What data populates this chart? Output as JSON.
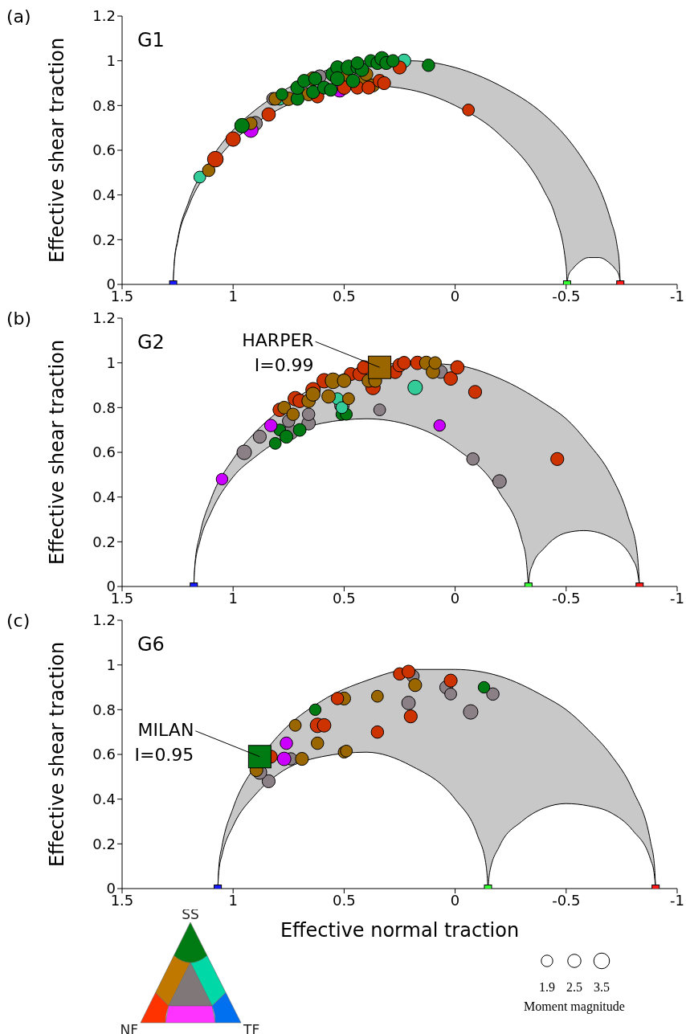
{
  "chart_data": [
    {
      "type": "bubble",
      "title": "G1",
      "ylabel": "Effective shear traction",
      "annotations": [
        "(a)"
      ],
      "xlim": [
        1.5,
        -1
      ],
      "xticks": [
        1.5,
        1,
        0.5,
        0,
        -0.5,
        -1
      ],
      "ylim": [
        0,
        1.2
      ],
      "yticks": [
        0,
        0.2,
        0.4,
        0.6,
        0.8,
        1,
        1.2
      ],
      "grid": false,
      "legend": false,
      "marker": "circle",
      "series": [
        {
          "type": "area",
          "marker": "none",
          "color": "#c8c8c8",
          "x": [
            1.27,
            1.265,
            1.25,
            1.2,
            1.1,
            1.0,
            0.9,
            0.8,
            0.6,
            0.4,
            0.2,
            0,
            -0.2,
            -0.4,
            -0.5,
            -0.6,
            -0.65,
            -0.7,
            -0.73,
            -0.739,
            -0.744
          ],
          "values": [
            0,
            0.1,
            0.2,
            0.37,
            0.56,
            0.69,
            0.78,
            0.85,
            0.95,
            1.0,
            1.0,
            0.97,
            0.89,
            0.76,
            0.66,
            0.52,
            0.43,
            0.29,
            0.17,
            0.1,
            0
          ]
        },
        {
          "type": "area",
          "marker": "none",
          "color": "#ffffff",
          "x": [
            1.27,
            1.265,
            1.25,
            1.2,
            1.1,
            1.0,
            0.9,
            0.8,
            0.6,
            0.4,
            0.2,
            0,
            -0.2,
            -0.4,
            -0.45,
            -0.5,
            -0.504
          ],
          "values": [
            0,
            0.09,
            0.19,
            0.35,
            0.52,
            0.64,
            0.72,
            0.78,
            0.86,
            0.89,
            0.87,
            0.8,
            0.67,
            0.42,
            0.31,
            0.08,
            0
          ]
        },
        {
          "type": "area",
          "marker": "none",
          "color": "#ffffff",
          "x": [
            -0.504,
            -0.51,
            -0.53,
            -0.56,
            -0.6,
            -0.624,
            -0.65,
            -0.69,
            -0.72,
            -0.738,
            -0.744
          ],
          "values": [
            0,
            0.04,
            0.07,
            0.1,
            0.12,
            0.12,
            0.12,
            0.1,
            0.07,
            0.04,
            0
          ]
        },
        {
          "type": "scatter",
          "marker": "square",
          "x": [
            1.27,
            -0.504,
            -0.744
          ],
          "values": [
            0,
            0,
            0
          ],
          "colors": [
            "#1a1aff",
            "#33ff33",
            "#ff1a1a"
          ]
        },
        {
          "color": "#8c8087",
          "x": [
            0.9,
            0.82,
            0.61
          ],
          "values": [
            0.72,
            0.83,
            0.93
          ],
          "sizes": [
            0.8,
            0.66,
            0.71
          ]
        },
        {
          "color": "#33cc99",
          "x": [
            1.15,
            0.79,
            0.23
          ],
          "values": [
            0.48,
            0.83,
            1.0
          ],
          "sizes": [
            0.57,
            0.66,
            0.74
          ]
        },
        {
          "color": "#cc00ff",
          "x": [
            0.92,
            0.52
          ],
          "values": [
            0.69,
            0.87
          ],
          "sizes": [
            0.86,
            0.86
          ]
        },
        {
          "color": "#996600",
          "x": [
            1.11,
            0.92,
            0.81,
            0.75,
            0.66,
            0.64,
            0.5,
            0.41,
            0.4,
            0.37
          ],
          "values": [
            0.51,
            0.72,
            0.83,
            0.83,
            0.85,
            0.92,
            0.93,
            0.91,
            0.94,
            0.89
          ],
          "sizes": [
            0.63,
            0.63,
            0.66,
            0.74,
            0.69,
            0.8,
            0.74,
            0.74,
            0.69,
            0.69
          ]
        },
        {
          "color": "#cc3300",
          "x": [
            1.08,
            1.0,
            0.84,
            0.62,
            0.5,
            0.44,
            0.39,
            0.34,
            0.32,
            0.25,
            -0.06
          ],
          "values": [
            0.56,
            0.65,
            0.76,
            0.84,
            0.88,
            0.88,
            0.88,
            0.91,
            0.9,
            0.97,
            0.78
          ],
          "sizes": [
            1,
            0.86,
            0.74,
            0.66,
            0.74,
            0.69,
            0.69,
            0.69,
            0.69,
            0.69,
            0.57
          ]
        },
        {
          "color": "#007a12",
          "x": [
            0.96,
            0.78,
            0.71,
            0.71,
            0.68,
            0.64,
            0.63,
            0.59,
            0.56,
            0.55,
            0.53,
            0.53,
            0.48,
            0.46,
            0.44,
            0.42,
            0.44,
            0.38,
            0.35,
            0.33,
            0.31,
            0.28,
            0.12
          ],
          "values": [
            0.71,
            0.85,
            0.83,
            0.88,
            0.91,
            0.86,
            0.92,
            0.88,
            0.87,
            0.94,
            0.97,
            0.92,
            0.97,
            0.91,
            0.97,
            0.96,
            0.99,
            1.0,
            0.99,
            1.01,
            0.99,
            1.0,
            0.98
          ],
          "sizes": [
            0.86,
            0.57,
            0.69,
            0.74,
            0.69,
            0.69,
            0.69,
            0.69,
            0.66,
            0.86,
            0.74,
            0.8,
            0.91,
            0.74,
            0.69,
            0.74,
            0.63,
            0.63,
            0.69,
            0.8,
            0.69,
            0.63,
            0.63
          ]
        }
      ]
    },
    {
      "type": "bubble",
      "title": "G2",
      "ylabel": "Effective shear traction",
      "annotations": [
        "(b)",
        {
          "text": "HARPER\nI=0.99",
          "x": 0.34,
          "y": 0.98
        }
      ],
      "xlim": [
        1.5,
        -1
      ],
      "xticks": [
        1.5,
        1,
        0.5,
        0,
        -0.5,
        -1
      ],
      "ylim": [
        0,
        1.2
      ],
      "yticks": [
        0,
        0.2,
        0.4,
        0.6,
        0.8,
        1,
        1.2
      ],
      "grid": false,
      "legend": false,
      "marker": "circle",
      "series": [
        {
          "type": "area",
          "marker": "none",
          "color": "#c8c8c8",
          "x": [
            1.177,
            1.172,
            1.15,
            1.1,
            1.0,
            0.9,
            0.8,
            0.6,
            0.4,
            0.2,
            0,
            -0.2,
            -0.4,
            -0.5,
            -0.6,
            -0.7,
            -0.78,
            -0.82,
            -0.831
          ],
          "values": [
            0,
            0.1,
            0.23,
            0.39,
            0.57,
            0.69,
            0.78,
            0.91,
            0.98,
            1.0,
            0.99,
            0.93,
            0.82,
            0.75,
            0.64,
            0.5,
            0.31,
            0.15,
            0
          ]
        },
        {
          "type": "area",
          "marker": "none",
          "color": "#ffffff",
          "x": [
            1.177,
            1.172,
            1.15,
            1.1,
            1.0,
            0.9,
            0.8,
            0.6,
            0.4,
            0.2,
            0,
            -0.2,
            -0.3,
            -0.32,
            -0.33
          ],
          "values": [
            0,
            0.09,
            0.2,
            0.33,
            0.49,
            0.58,
            0.65,
            0.73,
            0.75,
            0.72,
            0.62,
            0.42,
            0.21,
            0.12,
            0
          ]
        },
        {
          "type": "area",
          "marker": "none",
          "color": "#ffffff",
          "x": [
            -0.33,
            -0.335,
            -0.35,
            -0.4,
            -0.5,
            -0.58,
            -0.7,
            -0.8,
            -0.82,
            -0.831
          ],
          "values": [
            0,
            0.05,
            0.1,
            0.17,
            0.24,
            0.25,
            0.22,
            0.12,
            0.07,
            0
          ]
        },
        {
          "type": "scatter",
          "marker": "square",
          "x": [
            1.177,
            -0.33,
            -0.831
          ],
          "values": [
            0,
            0,
            0
          ],
          "colors": [
            "#1a1aff",
            "#33ff33",
            "#ff1a1a"
          ]
        },
        {
          "color": "#8c8087",
          "x": [
            0.95,
            0.88,
            0.74,
            0.75,
            0.66,
            0.66,
            0.51,
            0.34,
            0.065,
            -0.08,
            -0.2
          ],
          "values": [
            0.6,
            0.67,
            0.69,
            0.74,
            0.73,
            0.77,
            0.81,
            0.79,
            0.96,
            0.57,
            0.47
          ],
          "sizes": [
            0.86,
            0.69,
            0.86,
            0.63,
            0.74,
            0.63,
            0.86,
            0.57,
            0.69,
            0.63,
            0.74
          ]
        },
        {
          "color": "#007a12",
          "x": [
            0.81,
            0.79,
            0.76,
            0.7,
            0.51,
            0.49
          ],
          "values": [
            0.64,
            0.7,
            0.67,
            0.7,
            0.77,
            0.77
          ],
          "sizes": [
            0.57,
            0.57,
            0.69,
            0.66,
            0.57,
            0.57
          ]
        },
        {
          "color": "#33cc99",
          "x": [
            0.53,
            0.51,
            0.18
          ],
          "values": [
            0.84,
            0.8,
            0.89
          ],
          "sizes": [
            0.57,
            0.57,
            0.86
          ]
        },
        {
          "color": "#cc00ff",
          "x": [
            1.05,
            0.83,
            0.07
          ],
          "values": [
            0.48,
            0.72,
            0.72
          ],
          "sizes": [
            0.54,
            0.63,
            0.54
          ]
        },
        {
          "color": "#cc3300",
          "x": [
            0.79,
            0.72,
            0.7,
            0.64,
            0.59,
            0.47,
            0.43,
            0.41,
            0.37,
            0.27,
            0.25,
            0.23,
            0.17,
            0.02,
            -0.01,
            -0.09,
            -0.46
          ],
          "values": [
            0.79,
            0.84,
            0.83,
            0.88,
            0.92,
            0.95,
            0.95,
            0.98,
            0.89,
            0.96,
            0.99,
            1.0,
            1.0,
            0.93,
            0.98,
            0.87,
            0.57
          ],
          "sizes": [
            0.74,
            0.86,
            0.74,
            0.86,
            0.86,
            0.69,
            0.74,
            0.74,
            0.86,
            0.74,
            0.74,
            0.69,
            0.74,
            0.74,
            0.74,
            0.69,
            0.69
          ]
        },
        {
          "color": "#996600",
          "x": [
            0.77,
            0.73,
            0.66,
            0.64,
            0.57,
            0.55,
            0.5,
            0.48,
            0.39,
            0.36,
            0.13,
            0.1,
            0.09
          ],
          "values": [
            0.8,
            0.77,
            0.83,
            0.86,
            0.85,
            0.92,
            0.92,
            0.84,
            0.92,
            0.92,
            1.0,
            0.96,
            1.0
          ],
          "sizes": [
            0.66,
            0.63,
            0.74,
            0.8,
            0.74,
            1,
            0.74,
            0.57,
            0.69,
            0.69,
            0.74,
            0.74,
            0.63
          ]
        },
        {
          "type": "scatter",
          "marker": "square",
          "color": "#996600",
          "x": [
            0.34
          ],
          "values": [
            0.98
          ]
        }
      ]
    },
    {
      "type": "bubble",
      "title": "G6",
      "ylabel": "Effective shear traction",
      "xlabel": "Effective normal traction",
      "annotations": [
        "(c)",
        {
          "text": "MILAN\nI=0.95",
          "x": 0.88,
          "y": 0.59
        },
        "SS",
        "NF",
        "TF"
      ],
      "legend_title": "Moment magnitude",
      "size_legend": [
        1.9,
        2.5,
        3.5
      ],
      "xlim": [
        1.5,
        -1
      ],
      "xticks": [
        1.5,
        1,
        0.5,
        0,
        -0.5,
        -1
      ],
      "ylim": [
        0,
        1.2
      ],
      "yticks": [
        0,
        0.2,
        0.4,
        0.6,
        0.8,
        1,
        1.2
      ],
      "grid": false,
      "legend": false,
      "marker": "circle",
      "series": [
        {
          "type": "area",
          "marker": "none",
          "color": "#c8c8c8",
          "x": [
            1.069,
            1.064,
            1.05,
            1.0,
            0.9,
            0.8,
            0.6,
            0.4,
            0.2,
            0,
            -0.2,
            -0.4,
            -0.5,
            -0.6,
            -0.7,
            -0.8,
            -0.88,
            -0.898,
            -0.903
          ],
          "values": [
            0,
            0.1,
            0.19,
            0.36,
            0.55,
            0.68,
            0.84,
            0.93,
            0.98,
            0.98,
            0.95,
            0.86,
            0.8,
            0.71,
            0.6,
            0.44,
            0.21,
            0.1,
            0
          ]
        },
        {
          "type": "area",
          "marker": "none",
          "color": "#ffffff",
          "x": [
            1.069,
            1.064,
            1.05,
            1.0,
            0.9,
            0.8,
            0.6,
            0.4,
            0.2,
            0,
            -0.1,
            -0.14,
            -0.148
          ],
          "values": [
            0,
            0.08,
            0.15,
            0.28,
            0.42,
            0.51,
            0.59,
            0.61,
            0.55,
            0.4,
            0.24,
            0.1,
            0
          ]
        },
        {
          "type": "area",
          "marker": "none",
          "color": "#ffffff",
          "x": [
            -0.148,
            -0.155,
            -0.2,
            -0.3,
            -0.4,
            -0.5,
            -0.6,
            -0.7,
            -0.8,
            -0.88,
            -0.896,
            -0.903
          ],
          "values": [
            0,
            0.07,
            0.19,
            0.3,
            0.36,
            0.38,
            0.37,
            0.34,
            0.26,
            0.13,
            0.07,
            0
          ]
        },
        {
          "type": "scatter",
          "marker": "square",
          "x": [
            1.069,
            -0.148,
            -0.903
          ],
          "values": [
            0,
            0,
            0
          ],
          "colors": [
            "#1a1aff",
            "#33ff33",
            "#ff1a1a"
          ]
        },
        {
          "color": "#8c8087",
          "x": [
            0.84,
            0.88,
            0.74,
            0.19,
            0.21,
            0.04,
            0.02,
            -0.17,
            -0.07
          ],
          "values": [
            0.48,
            0.52,
            0.58,
            0.95,
            0.83,
            0.9,
            0.87,
            0.87,
            0.79
          ],
          "sizes": [
            2.4,
            2.8,
            2.2,
            2.2,
            2.6,
            2.4,
            2.0,
            2.2,
            3.0
          ]
        },
        {
          "color": "#996600",
          "x": [
            0.895,
            0.69,
            0.72,
            0.62,
            0.5,
            0.5,
            0.49,
            0.35,
            0.18
          ],
          "values": [
            0.53,
            0.58,
            0.73,
            0.65,
            0.85,
            0.61,
            0.615,
            0.86,
            0.91
          ],
          "sizes": [
            2.4,
            2.4,
            2.0,
            2.2,
            2.4,
            2.0,
            2.0,
            2.0,
            2.4
          ]
        },
        {
          "color": "#cc3300",
          "x": [
            0.83,
            0.62,
            0.59,
            0.53,
            0.35,
            0.25,
            0.21,
            0.2,
            0.02
          ],
          "values": [
            0.59,
            0.73,
            0.73,
            0.85,
            0.7,
            0.96,
            0.97,
            0.77,
            0.93
          ],
          "sizes": [
            2.4,
            3.0,
            2.6,
            2.2,
            2.2,
            2.2,
            2.4,
            2.4,
            2.4
          ]
        },
        {
          "color": "#cc00ff",
          "x": [
            0.77,
            0.76
          ],
          "values": [
            0.58,
            0.65
          ],
          "sizes": [
            2.6,
            2.2
          ]
        },
        {
          "color": "#007a12",
          "x": [
            0.63,
            -0.13
          ],
          "values": [
            0.8,
            0.9
          ],
          "sizes": [
            1.9,
            1.9
          ]
        },
        {
          "type": "scatter",
          "marker": "square",
          "color": "#007a12",
          "x": [
            0.88
          ],
          "values": [
            0.59
          ]
        }
      ]
    }
  ]
}
